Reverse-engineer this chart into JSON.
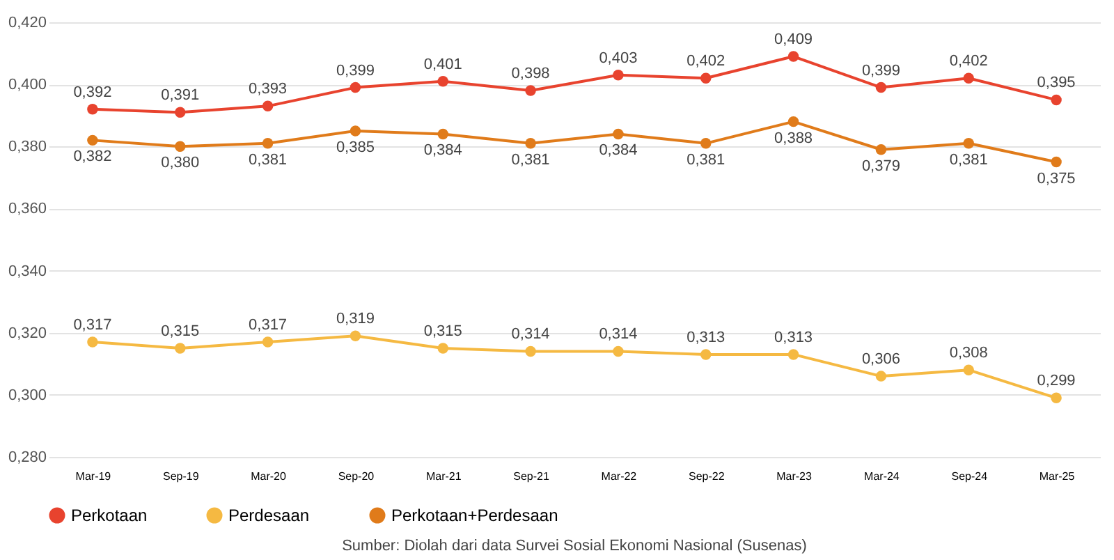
{
  "chart_data": {
    "type": "line",
    "categories": [
      "Mar-19",
      "Sep-19",
      "Mar-20",
      "Sep-20",
      "Mar-21",
      "Sep-21",
      "Mar-22",
      "Sep-22",
      "Mar-23",
      "Mar-24",
      "Sep-24",
      "Mar-25"
    ],
    "series": [
      {
        "name": "Perkotaan",
        "color": "#e8432e",
        "values": [
          0.392,
          0.391,
          0.393,
          0.399,
          0.401,
          0.398,
          0.403,
          0.402,
          0.409,
          0.399,
          0.402,
          0.395
        ],
        "value_labels": [
          "0,392",
          "0,391",
          "0,393",
          "0,399",
          "0,401",
          "0,398",
          "0,403",
          "0,402",
          "0,409",
          "0,399",
          "0,402",
          "0,395"
        ]
      },
      {
        "name": "Perdesaan",
        "color": "#f5b942",
        "values": [
          0.317,
          0.315,
          0.317,
          0.319,
          0.315,
          0.314,
          0.314,
          0.313,
          0.313,
          0.306,
          0.308,
          0.299
        ],
        "value_labels": [
          "0,317",
          "0,315",
          "0,317",
          "0,319",
          "0,315",
          "0,314",
          "0,314",
          "0,313",
          "0,313",
          "0,306",
          "0,308",
          "0,299"
        ]
      },
      {
        "name": "Perkotaan+Perdesaan",
        "color": "#e07b1a",
        "values": [
          0.382,
          0.38,
          0.381,
          0.385,
          0.384,
          0.381,
          0.384,
          0.381,
          0.388,
          0.379,
          0.381,
          0.375
        ],
        "value_labels": [
          "0,382",
          "0,380",
          "0,381",
          "0,385",
          "0,384",
          "0,381",
          "0,384",
          "0,381",
          "0,388",
          "0,379",
          "0,381",
          "0,375"
        ]
      }
    ],
    "ylim": [
      0.28,
      0.42
    ],
    "yticks": [
      {
        "value": 0.28,
        "label": "0,280"
      },
      {
        "value": 0.3,
        "label": "0,300"
      },
      {
        "value": 0.32,
        "label": "0,320"
      },
      {
        "value": 0.34,
        "label": "0,340"
      },
      {
        "value": 0.36,
        "label": "0,360"
      },
      {
        "value": 0.38,
        "label": "0,380"
      },
      {
        "value": 0.4,
        "label": "0,400"
      },
      {
        "value": 0.42,
        "label": "0,420"
      }
    ],
    "grid": "y",
    "legend": "bottom",
    "marker": "circle",
    "line_style": "solid",
    "annotations": [
      "Sumber: Diolah dari data Survei Sosial Ekonomi Nasional (Susenas)"
    ]
  }
}
